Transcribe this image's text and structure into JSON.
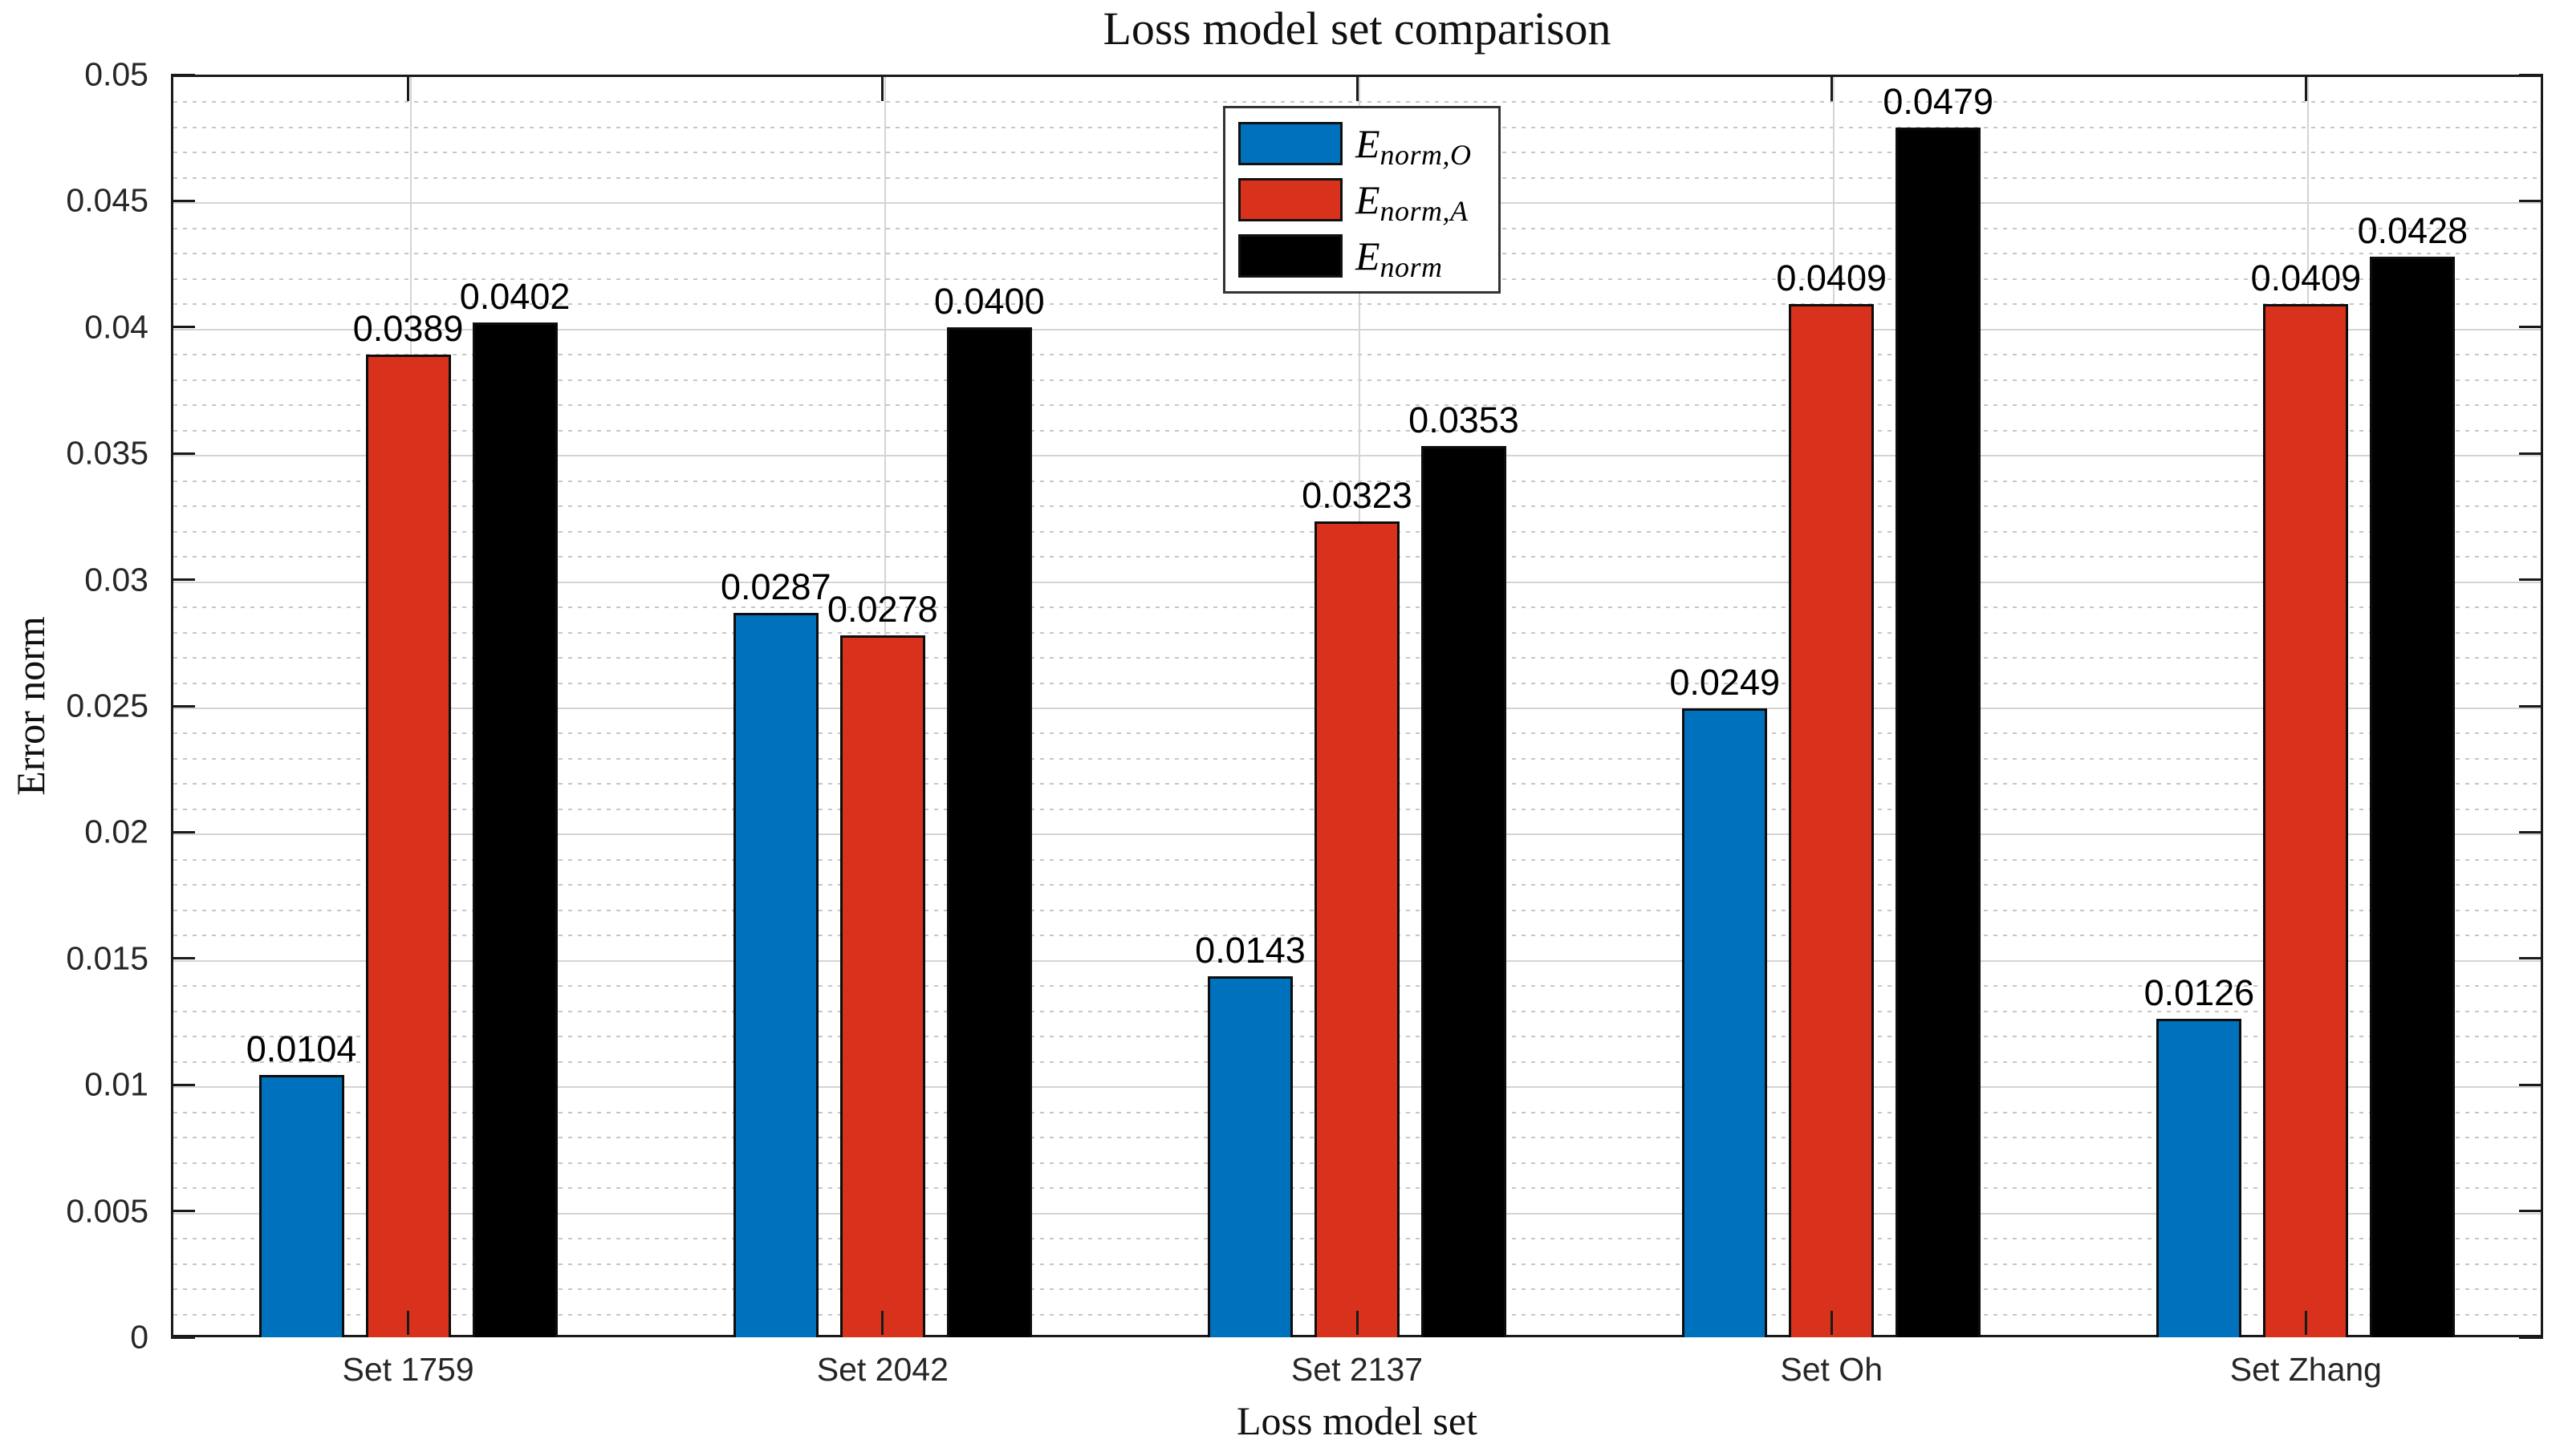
{
  "figure": {
    "title": "Loss model set comparison",
    "xlabel": "Loss model set",
    "ylabel": "Error norm"
  },
  "legend": {
    "items": [
      {
        "main": "E",
        "sub": "norm,O",
        "color": "#0072BD"
      },
      {
        "main": "E",
        "sub": "norm,A",
        "color": "#D8321C"
      },
      {
        "main": "E",
        "sub": "norm",
        "color": "#000000"
      }
    ]
  },
  "chart_data": {
    "type": "bar",
    "title": "Loss model set comparison",
    "xlabel": "Loss model set",
    "ylabel": "Error norm",
    "categories": [
      "Set 1759",
      "Set 2042",
      "Set 2137",
      "Set Oh",
      "Set Zhang"
    ],
    "series": [
      {
        "name": "E_norm,O",
        "color": "#0072BD",
        "values": [
          0.0104,
          0.0287,
          0.0143,
          0.0249,
          0.0126
        ],
        "labels": [
          "0.0104",
          "0.0287",
          "0.0143",
          "0.0249",
          "0.0126"
        ]
      },
      {
        "name": "E_norm,A",
        "color": "#D8321C",
        "values": [
          0.0389,
          0.0278,
          0.0323,
          0.0409,
          0.0409
        ],
        "labels": [
          "0.0389",
          "0.0278",
          "0.0323",
          "0.0409",
          "0.0409"
        ]
      },
      {
        "name": "E_norm",
        "color": "#000000",
        "values": [
          0.0402,
          0.04,
          0.0353,
          0.0479,
          0.0428
        ],
        "labels": [
          "0.0402",
          "0.0400",
          "0.0353",
          "0.0479",
          "0.0428"
        ]
      }
    ],
    "ylim": [
      0,
      0.05
    ],
    "ytick_step": 0.005,
    "yminor_step": 0.001,
    "ytick_labels": [
      "0",
      "0.005",
      "0.01",
      "0.015",
      "0.02",
      "0.025",
      "0.03",
      "0.035",
      "0.04",
      "0.045",
      "0.05"
    ],
    "grid": {
      "y_major": "solid",
      "y_minor": "dotted",
      "x_major": "solid at category centers"
    },
    "legend_position": "inside top, left of center",
    "bar_edge_color": "#0d0d0d"
  }
}
